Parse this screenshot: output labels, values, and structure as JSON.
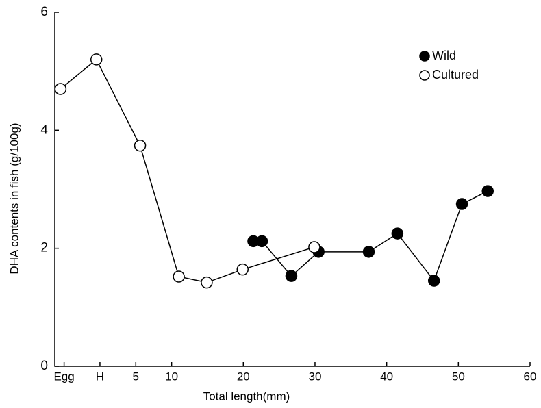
{
  "chart_data": {
    "type": "line",
    "xlabel": "Total length(mm)",
    "ylabel": "DHA contents in fish (g/100g)",
    "xlim": [
      -6.3,
      60
    ],
    "ylim": [
      0,
      6
    ],
    "xticks": [
      {
        "value": -5,
        "label": "Egg"
      },
      {
        "value": 0,
        "label": "H"
      },
      5,
      10,
      20,
      30,
      40,
      50,
      60
    ],
    "yticks": [
      0,
      2,
      4,
      6
    ],
    "legend": "top-right",
    "series": [
      {
        "name": "Wild",
        "color": "#000000",
        "filled": true,
        "x": [
          21.4,
          22.6,
          26.7,
          30.5,
          37.5,
          41.5,
          46.6,
          50.5,
          54.1
        ],
        "values": [
          2.12,
          2.12,
          1.53,
          1.94,
          1.94,
          2.25,
          1.45,
          2.75,
          2.97
        ]
      },
      {
        "name": "Cultured",
        "color": "#000000",
        "filled": false,
        "x": [
          -5.5,
          -0.5,
          5.6,
          11.0,
          14.9,
          19.9,
          29.9
        ],
        "values": [
          4.7,
          5.2,
          3.74,
          1.52,
          1.42,
          1.64,
          2.02
        ]
      }
    ]
  }
}
